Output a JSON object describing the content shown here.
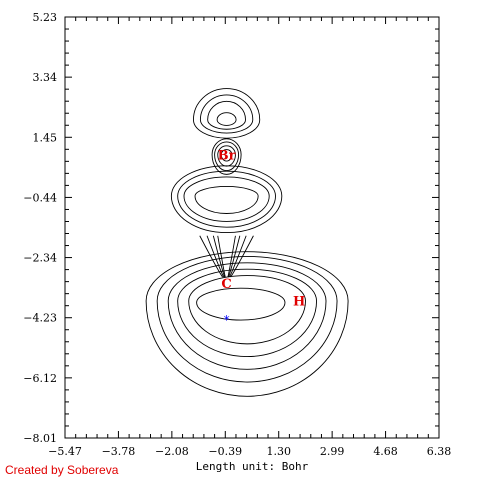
{
  "colors": {
    "contour": "#000000",
    "atom_label": "#e00000",
    "critical_point": "#0000ff",
    "credit": "#e00000"
  },
  "credit_text": "Created by Sobereva",
  "chart_data": {
    "type": "contour",
    "xlabel": "Length unit: Bohr",
    "ylabel": "",
    "xlim": [
      -5.47,
      6.38
    ],
    "ylim": [
      -8.01,
      5.23
    ],
    "x_ticks": [
      "-5.47",
      "-3.78",
      "-2.08",
      "-0.39",
      "1.30",
      "2.99",
      "4.68",
      "6.38"
    ],
    "y_ticks": [
      "5.23",
      "3.34",
      "1.45",
      "-0.44",
      "-2.34",
      "-4.23",
      "-6.12",
      "-8.01"
    ],
    "atoms": [
      {
        "label": "Br",
        "x": -0.35,
        "y": 0.9
      },
      {
        "label": "C",
        "x": -0.35,
        "y": -3.13
      },
      {
        "label": "H",
        "x": 1.95,
        "y": -3.68
      }
    ],
    "critical_points": [
      {
        "marker": "*",
        "x": -0.35,
        "y": -4.3
      }
    ],
    "lobes": [
      {
        "name": "br-upper-lobe",
        "cx": -0.35,
        "cy": 2.0,
        "levels": [
          {
            "rx": 1.05,
            "ry_up": 0.98,
            "ry_down": 0.58
          },
          {
            "rx": 0.83,
            "ry_up": 0.78,
            "ry_down": 0.42
          },
          {
            "rx": 0.6,
            "ry_up": 0.58,
            "ry_down": 0.3
          },
          {
            "rx": 0.3,
            "ry_up": 0.22,
            "ry_down": 0.18
          }
        ]
      },
      {
        "name": "br-core-shells",
        "cx": -0.35,
        "cy": 0.9,
        "levels": [
          {
            "rx": 0.46,
            "ry_up": 0.5,
            "ry_down": 0.62
          },
          {
            "rx": 0.38,
            "ry_up": 0.4,
            "ry_down": 0.5
          },
          {
            "rx": 0.28,
            "ry_up": 0.28,
            "ry_down": 0.36
          },
          {
            "rx": 0.17,
            "ry_up": 0.16,
            "ry_down": 0.2
          }
        ]
      },
      {
        "name": "middle-heart-lobe",
        "cx": -0.35,
        "cy": -0.4,
        "levels": [
          {
            "rx": 1.75,
            "ry_up": 0.95,
            "ry_down": 1.15
          },
          {
            "rx": 1.55,
            "ry_up": 0.78,
            "ry_down": 0.98
          },
          {
            "rx": 1.35,
            "ry_up": 0.6,
            "ry_down": 0.8
          },
          {
            "rx": 1.0,
            "ry_up": 0.3,
            "ry_down": 0.55
          }
        ]
      },
      {
        "name": "c-h-region",
        "cx": 0.3,
        "cy": -3.7,
        "levels": [
          {
            "rx": 3.2,
            "ry_up": 1.55,
            "ry_down": 3.0
          },
          {
            "rx": 2.85,
            "ry_up": 1.4,
            "ry_down": 2.55
          },
          {
            "rx": 2.5,
            "ry_up": 1.2,
            "ry_down": 2.15
          },
          {
            "rx": 2.2,
            "ry_up": 1.0,
            "ry_down": 1.75
          },
          {
            "rx": 1.85,
            "ry_up": 0.8,
            "ry_down": 1.35
          }
        ]
      },
      {
        "name": "c-h-inner-lobe",
        "cx": 0.1,
        "cy": -3.75,
        "levels": [
          {
            "rx": 1.4,
            "ry_up": 0.45,
            "ry_down": 0.55
          }
        ]
      }
    ],
    "funnel_lines": {
      "x_offsets": [
        -0.85,
        -0.62,
        -0.42,
        -0.28,
        0.28,
        0.42,
        0.62,
        0.85
      ],
      "y_top": -1.65,
      "y_bottom": -2.95
    }
  }
}
